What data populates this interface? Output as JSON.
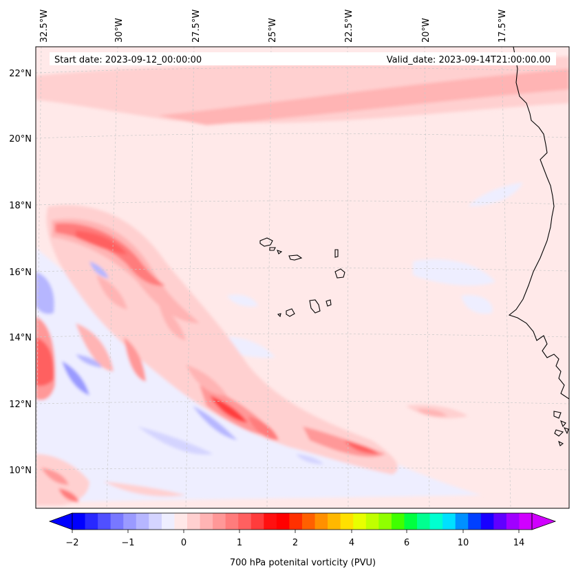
{
  "header": {
    "start_date": "Start date: 2023-09-12_00:00:00",
    "valid_date": "Valid_date: 2023-09-14T21:00:00.00"
  },
  "longitude_labels": [
    "32.5°W",
    "30°W",
    "27.5°W",
    "25°W",
    "22.5°W",
    "20°W",
    "17.5°W"
  ],
  "latitude_labels": [
    "22°N",
    "20°N",
    "18°N",
    "16°N",
    "14°N",
    "12°N",
    "10°N"
  ],
  "colorbar": {
    "label": "700 hPa potenital vorticity (PVU)",
    "ticks": [
      "−2",
      "−1",
      "0",
      "1",
      "2",
      "4",
      "6",
      "10",
      "14"
    ],
    "colors": [
      "#0000ff",
      "#2828ff",
      "#5050ff",
      "#7878ff",
      "#9a9aff",
      "#b6b6ff",
      "#d4d4ff",
      "#eeeeff",
      "#ffe8e8",
      "#ffd0d0",
      "#ffb4b4",
      "#ff9898",
      "#ff7c7c",
      "#ff6060",
      "#ff3c3c",
      "#ff1010",
      "#ff0000",
      "#ff3000",
      "#ff6000",
      "#ff9000",
      "#ffb800",
      "#ffe000",
      "#e8ff00",
      "#c0ff00",
      "#90ff00",
      "#40ff00",
      "#00ff40",
      "#00ff90",
      "#00ffd0",
      "#00e0ff",
      "#0090ff",
      "#0040ff",
      "#1800ff",
      "#6000ff",
      "#a000ff",
      "#d000ff"
    ],
    "under_color": "#0000ff",
    "over_color": "#d000ff"
  },
  "colors": {
    "background_field": "#ffe9e9",
    "coast": "#000000",
    "grid": "#c8c8c8"
  }
}
